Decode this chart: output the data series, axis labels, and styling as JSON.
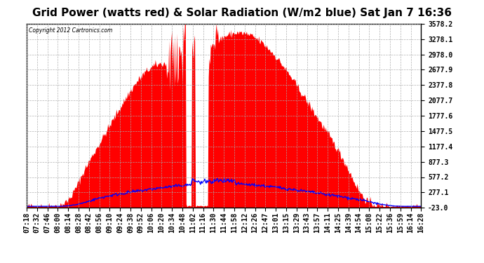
{
  "title": "Grid Power (watts red) & Solar Radiation (W/m2 blue) Sat Jan 7 16:36",
  "copyright": "Copyright 2012 Cartronics.com",
  "background_color": "#ffffff",
  "plot_bg_color": "#ffffff",
  "y_min": -23.0,
  "y_max": 3578.2,
  "y_ticks": [
    3578.2,
    3278.1,
    2978.0,
    2677.9,
    2377.8,
    2077.7,
    1777.6,
    1477.5,
    1177.4,
    877.3,
    577.2,
    277.1,
    -23.0
  ],
  "x_tick_labels": [
    "07:18",
    "07:32",
    "07:46",
    "08:00",
    "08:14",
    "08:28",
    "08:42",
    "08:56",
    "09:10",
    "09:24",
    "09:38",
    "09:52",
    "10:06",
    "10:20",
    "10:34",
    "10:48",
    "11:02",
    "11:16",
    "11:30",
    "11:44",
    "11:58",
    "12:12",
    "12:26",
    "12:47",
    "13:01",
    "13:15",
    "13:29",
    "13:43",
    "13:57",
    "14:11",
    "14:25",
    "14:39",
    "14:54",
    "15:08",
    "15:22",
    "15:36",
    "15:59",
    "16:14",
    "16:28"
  ],
  "red_color": "#ff0000",
  "blue_color": "#0000ff",
  "grid_color": "#aaaaaa",
  "title_fontsize": 11,
  "tick_fontsize": 7
}
